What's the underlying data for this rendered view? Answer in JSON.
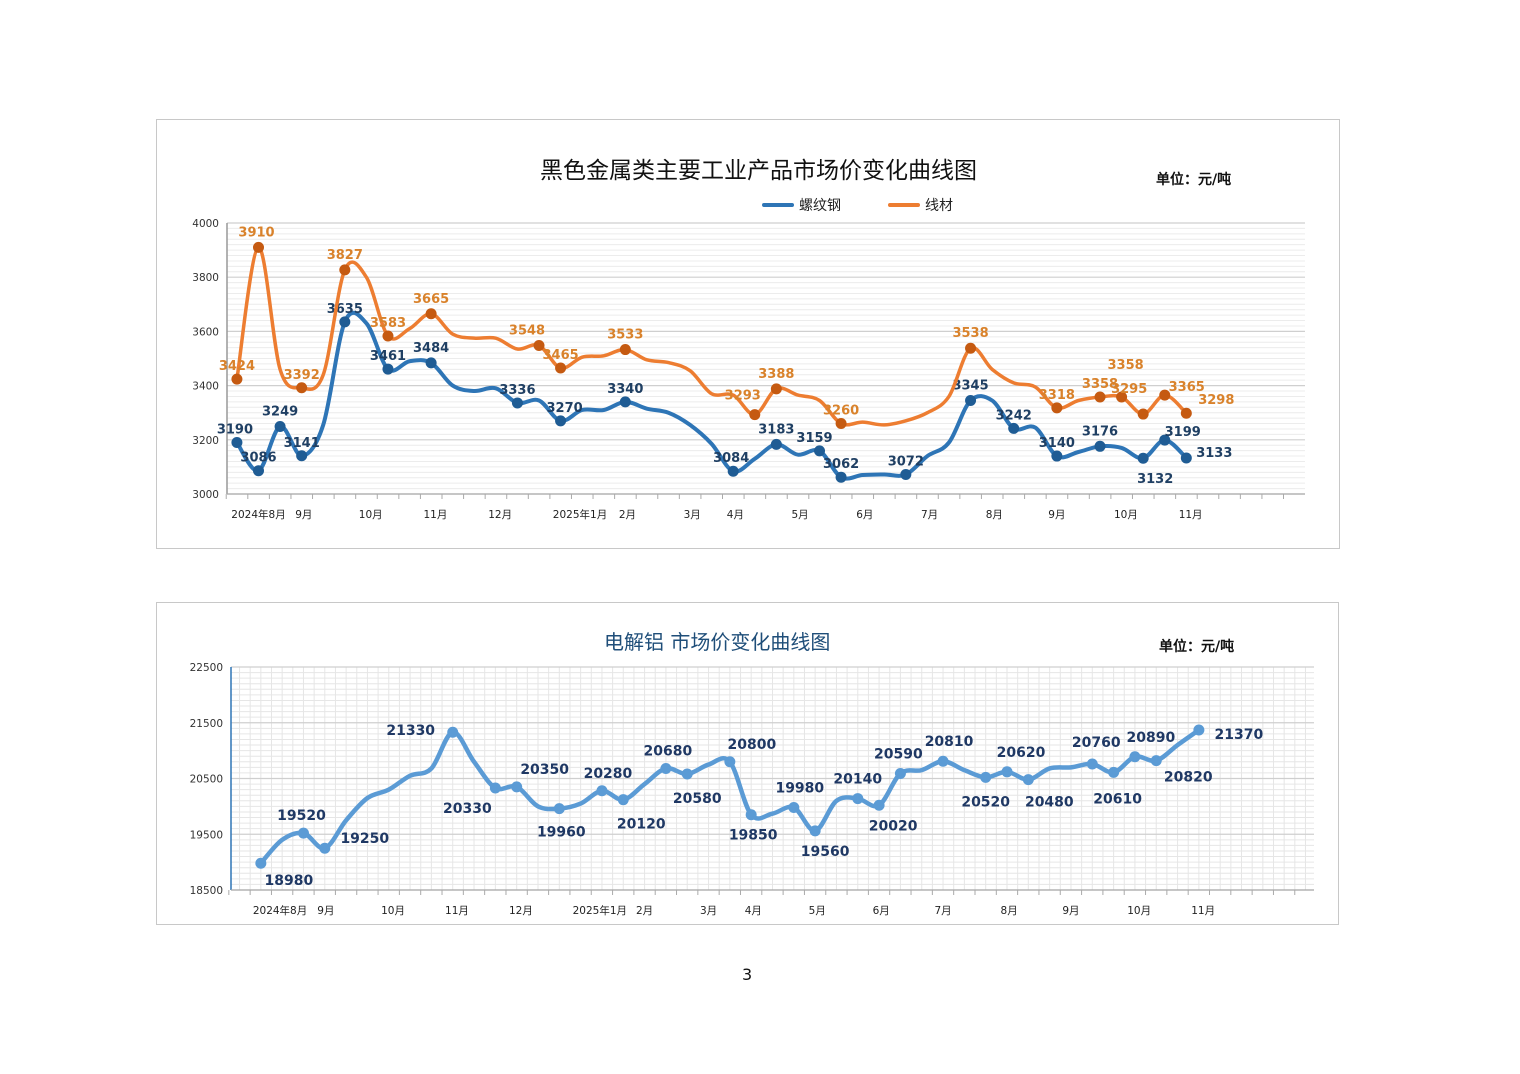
{
  "page_number": "3",
  "chart_data": [
    {
      "type": "line",
      "title": "黑色金属类主要工业产品市场价变化曲线图",
      "unit": "单位：元/吨",
      "legend_position": "top",
      "grid": true,
      "ylim": [
        3000,
        4000
      ],
      "y_ticks": [
        3000,
        3200,
        3400,
        3600,
        3800,
        4000
      ],
      "x_tick_labels": [
        {
          "label": "2024年8月",
          "x": 1.0
        },
        {
          "label": "9月",
          "x": 3.1
        },
        {
          "label": "10月",
          "x": 6.2
        },
        {
          "label": "11月",
          "x": 9.2
        },
        {
          "label": "12月",
          "x": 12.2
        },
        {
          "label": "2025年1月",
          "x": 15.9
        },
        {
          "label": "2月",
          "x": 18.1
        },
        {
          "label": "3月",
          "x": 21.1
        },
        {
          "label": "4月",
          "x": 23.1
        },
        {
          "label": "5月",
          "x": 26.1
        },
        {
          "label": "6月",
          "x": 29.1
        },
        {
          "label": "7月",
          "x": 32.1
        },
        {
          "label": "8月",
          "x": 35.1
        },
        {
          "label": "9月",
          "x": 38.0
        },
        {
          "label": "10月",
          "x": 41.2
        },
        {
          "label": "11月",
          "x": 44.2
        }
      ],
      "series": [
        {
          "name": "螺纹钢",
          "color": "#2e75b6",
          "marker_color": "#1f5c94",
          "label_color": "#1f3f63",
          "values": [
            3190,
            3086,
            3249,
            3141,
            3255,
            3635,
            3630,
            3461,
            3490,
            3484,
            3400,
            3380,
            3390,
            3336,
            3345,
            3270,
            3310,
            3310,
            3340,
            3315,
            3300,
            3255,
            3185,
            3084,
            3130,
            3183,
            3145,
            3159,
            3062,
            3070,
            3072,
            3072,
            3140,
            3190,
            3345,
            3345,
            3242,
            3245,
            3140,
            3155,
            3176,
            3170,
            3132,
            3199,
            3133
          ],
          "labeled": [
            0,
            1,
            2,
            3,
            5,
            7,
            9,
            13,
            15,
            18,
            23,
            25,
            27,
            28,
            31,
            34,
            36,
            38,
            40,
            42,
            43,
            44
          ]
        },
        {
          "name": "线材",
          "color": "#ed7d31",
          "marker_color": "#c55a11",
          "label_color": "#d9822b",
          "values": [
            3424,
            3910,
            3460,
            3392,
            3440,
            3827,
            3800,
            3583,
            3610,
            3665,
            3590,
            3575,
            3575,
            3535,
            3548,
            3465,
            3505,
            3510,
            3533,
            3495,
            3485,
            3455,
            3370,
            3365,
            3293,
            3388,
            3365,
            3345,
            3260,
            3265,
            3255,
            3270,
            3300,
            3360,
            3538,
            3460,
            3410,
            3395,
            3318,
            3345,
            3358,
            3358,
            3295,
            3365,
            3298
          ],
          "labeled": [
            0,
            1,
            3,
            5,
            7,
            9,
            14,
            15,
            18,
            24,
            25,
            28,
            34,
            38,
            40,
            41,
            42,
            43,
            44
          ]
        }
      ]
    },
    {
      "type": "line",
      "title": "电解铝 市场价变化曲线图",
      "unit": "单位：元/吨",
      "grid": true,
      "ylim": [
        18500,
        22500
      ],
      "y_ticks": [
        18500,
        19500,
        20500,
        21500,
        22500
      ],
      "x_tick_labels": [
        {
          "label": "2024年8月",
          "x": 0.9
        },
        {
          "label": "9月",
          "x": 3.05
        },
        {
          "label": "10月",
          "x": 6.2
        },
        {
          "label": "11月",
          "x": 9.2
        },
        {
          "label": "12月",
          "x": 12.2
        },
        {
          "label": "2025年1月",
          "x": 15.9
        },
        {
          "label": "2月",
          "x": 18.0
        },
        {
          "label": "3月",
          "x": 21.0
        },
        {
          "label": "4月",
          "x": 23.1
        },
        {
          "label": "5月",
          "x": 26.1
        },
        {
          "label": "6月",
          "x": 29.1
        },
        {
          "label": "7月",
          "x": 32.0
        },
        {
          "label": "8月",
          "x": 35.1
        },
        {
          "label": "9月",
          "x": 38.0
        },
        {
          "label": "10月",
          "x": 41.2
        },
        {
          "label": "11月",
          "x": 44.2
        }
      ],
      "series": [
        {
          "color": "#5b9bd5",
          "marker_color": "#5b9bd5",
          "label_color": "#1f3864",
          "values": [
            18980,
            19400,
            19520,
            19250,
            19750,
            20150,
            20300,
            20550,
            20680,
            21330,
            20800,
            20330,
            20350,
            20000,
            19960,
            20050,
            20280,
            20120,
            20400,
            20680,
            20580,
            20750,
            20800,
            19850,
            19870,
            19980,
            19560,
            20100,
            20140,
            20020,
            20590,
            20650,
            20810,
            20650,
            20520,
            20620,
            20480,
            20680,
            20700,
            20760,
            20610,
            20890,
            20820,
            21100,
            21370
          ],
          "labeled": [
            0,
            2,
            3,
            9,
            11,
            12,
            14,
            16,
            17,
            19,
            20,
            22,
            23,
            25,
            26,
            28,
            29,
            30,
            32,
            34,
            35,
            36,
            39,
            40,
            41,
            42,
            44
          ]
        }
      ]
    }
  ]
}
